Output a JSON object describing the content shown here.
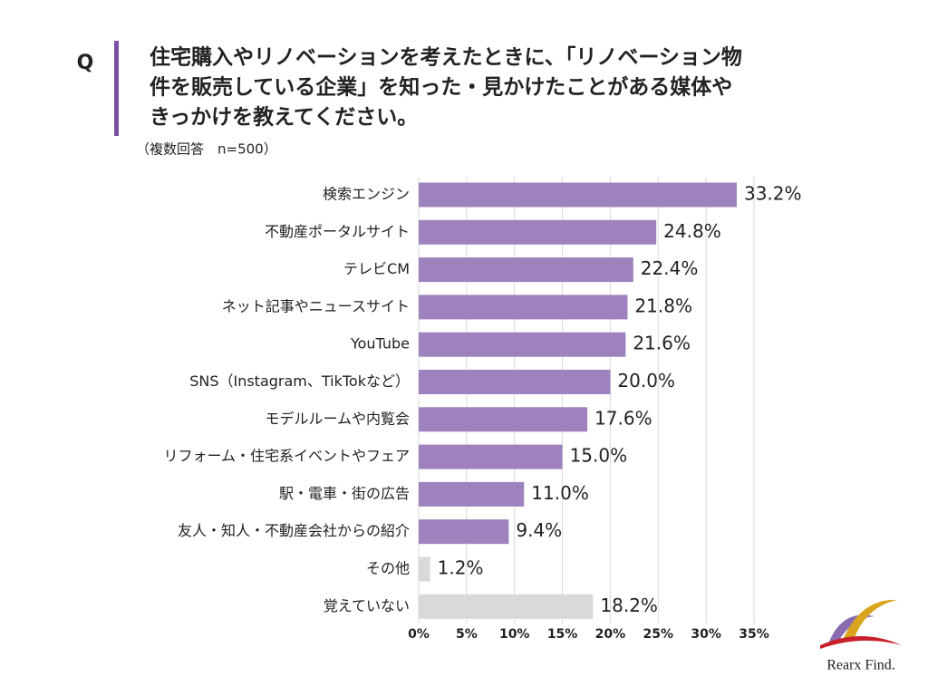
{
  "chart_data": {
    "type": "bar",
    "orientation": "horizontal",
    "question_mark": "Q",
    "title": [
      "住宅購入やリノベーションを考えたときに、「リノベーション物",
      "件を販売している企業」を知った・見かけたことがある媒体や",
      "きっかけを教えてください。"
    ],
    "subtitle": "（複数回答　n=500）",
    "categories": [
      "検索エンジン",
      "不動産ポータルサイト",
      "テレビCM",
      "ネット記事やニュースサイト",
      "YouTube",
      "SNS（Instagram、TikTokなど）",
      "モデルルームや内覧会",
      "リフォーム・住宅系イベントやフェア",
      "駅・電車・街の広告",
      "友人・知人・不動産会社からの紹介",
      "その他",
      "覚えていない"
    ],
    "values": [
      33.2,
      24.8,
      22.4,
      21.8,
      21.6,
      20.0,
      17.6,
      15.0,
      11.0,
      9.4,
      1.2,
      18.2
    ],
    "value_labels": [
      "33.2%",
      "24.8%",
      "22.4%",
      "21.8%",
      "21.6%",
      "20.0%",
      "17.6%",
      "15.0%",
      "11.0%",
      "9.4%",
      "1.2%",
      "18.2%"
    ],
    "colors": [
      "#9e82be",
      "#9e82be",
      "#9e82be",
      "#9e82be",
      "#9e82be",
      "#9e82be",
      "#9e82be",
      "#9e82be",
      "#9e82be",
      "#9e82be",
      "#d9d9d9",
      "#d9d9d9"
    ],
    "xlim": [
      0,
      35
    ],
    "xticks": [
      {
        "value": 0,
        "label": "0%"
      },
      {
        "value": 5,
        "label": "5%"
      },
      {
        "value": 10,
        "label": "10%"
      },
      {
        "value": 15,
        "label": "15%"
      },
      {
        "value": 20,
        "label": "20%"
      },
      {
        "value": 25,
        "label": "25%"
      },
      {
        "value": 30,
        "label": "30%"
      },
      {
        "value": 35,
        "label": "35%"
      }
    ],
    "grid": true,
    "logo": "Rearx Find."
  }
}
